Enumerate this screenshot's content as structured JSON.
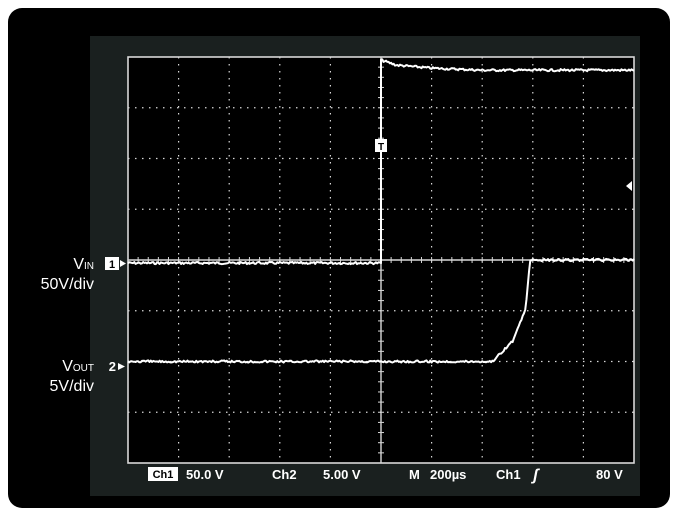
{
  "scope": {
    "left_labels": {
      "vin_main": "V",
      "vin_sub": "IN",
      "vin_scale": "50V/div",
      "vout_main": "V",
      "vout_sub": "OUT",
      "vout_scale": "5V/div"
    },
    "markers": {
      "ch1": "1",
      "ch2": "2",
      "trigger": "T"
    },
    "status_bar": {
      "ch1_label": "Ch1",
      "ch1_scale": "50.0 V",
      "ch2_label": "Ch2",
      "ch2_scale": "5.00 V",
      "timebase_label": "M",
      "timebase": "200µs",
      "trigger_source": "Ch1",
      "trigger_slope": "ʃ",
      "trigger_level": "80 V"
    }
  },
  "chart_data": {
    "type": "line",
    "title": "",
    "xlabel": "",
    "ylabel": "",
    "grid": true,
    "x_divisions": 10,
    "y_divisions": 8,
    "trigger_time_div": 5,
    "series": [
      {
        "name": "VIN",
        "unit": "V",
        "scale_per_div": 50,
        "points": [
          [
            0,
            0
          ],
          [
            5,
            0
          ],
          [
            5,
            200
          ],
          [
            5.3,
            195
          ],
          [
            6,
            192
          ],
          [
            7,
            190
          ],
          [
            10,
            190
          ]
        ]
      },
      {
        "name": "VOUT",
        "unit": "V",
        "scale_per_div": 5,
        "points": [
          [
            0,
            0
          ],
          [
            5,
            0
          ],
          [
            7.2,
            0
          ],
          [
            7.6,
            2
          ],
          [
            7.85,
            5
          ],
          [
            7.95,
            10
          ],
          [
            8.2,
            10
          ],
          [
            10,
            10
          ]
        ]
      }
    ],
    "colors": {
      "trace": "#ffffff",
      "grid": "#d8d8d8",
      "screen": "#000000"
    }
  }
}
